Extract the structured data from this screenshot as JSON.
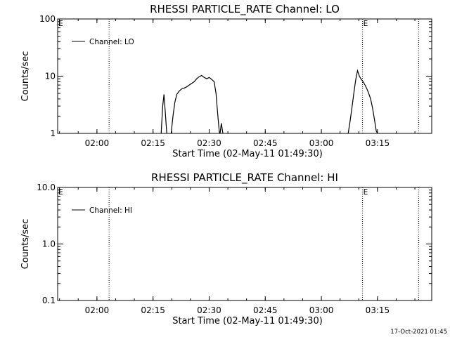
{
  "chart_data": [
    {
      "type": "line",
      "title": "RHESSI PARTICLE_RATE Channel: LO",
      "xlabel": "Start Time (02-May-11 01:49:30)",
      "ylabel": "Counts/sec",
      "x_unit": "time (HH:MM)",
      "xlim": [
        "01:49:30",
        "03:29:30"
      ],
      "x_ticks": [
        "02:00",
        "02:15",
        "02:30",
        "02:45",
        "03:00",
        "03:15"
      ],
      "y_scale": "log",
      "ylim": [
        1,
        100
      ],
      "y_ticks": [
        "1",
        "10",
        "100"
      ],
      "legend": {
        "entry": "Channel: LO",
        "placement": "top-left"
      },
      "markers": [
        {
          "time": "02:03:15",
          "label": ""
        },
        {
          "time": "03:11:00",
          "label": "E"
        },
        {
          "time": "03:26:00",
          "label": ""
        }
      ],
      "corner_label": "E",
      "series": [
        {
          "name": "Channel: LO",
          "segments": [
            [
              [
                "02:17:10",
                1
              ],
              [
                "02:17:35",
                3
              ],
              [
                "02:17:55",
                4.8
              ],
              [
                "02:18:15",
                2.5
              ],
              [
                "02:18:40",
                1
              ]
            ],
            [
              [
                "02:19:50",
                1
              ],
              [
                "02:20:20",
                2
              ],
              [
                "02:20:50",
                3.5
              ],
              [
                "02:21:20",
                4.8
              ],
              [
                "02:22:00",
                5.5
              ],
              [
                "02:22:40",
                6.0
              ],
              [
                "02:23:20",
                6.2
              ],
              [
                "02:24:00",
                6.5
              ],
              [
                "02:24:40",
                7.0
              ],
              [
                "02:25:20",
                7.5
              ],
              [
                "02:26:00",
                8.0
              ],
              [
                "02:26:40",
                9.0
              ],
              [
                "02:27:20",
                9.8
              ],
              [
                "02:28:00",
                10.3
              ],
              [
                "02:28:40",
                9.5
              ],
              [
                "02:29:20",
                9.0
              ],
              [
                "02:30:00",
                9.5
              ],
              [
                "02:30:40",
                8.8
              ],
              [
                "02:31:20",
                8.0
              ],
              [
                "02:31:50",
                5.0
              ],
              [
                "02:32:20",
                2.0
              ],
              [
                "02:32:45",
                1
              ]
            ],
            [
              [
                "02:32:55",
                1
              ],
              [
                "02:33:15",
                1.5
              ],
              [
                "02:33:40",
                1
              ]
            ],
            [
              [
                "03:07:10",
                1
              ],
              [
                "03:07:40",
                1.6
              ],
              [
                "03:08:10",
                2.8
              ],
              [
                "03:08:40",
                5.0
              ],
              [
                "03:09:10",
                8.5
              ],
              [
                "03:09:40",
                12.5
              ],
              [
                "03:10:10",
                10.0
              ],
              [
                "03:10:40",
                8.8
              ],
              [
                "03:11:10",
                8.0
              ],
              [
                "03:11:40",
                7.0
              ],
              [
                "03:12:10",
                6.0
              ],
              [
                "03:12:40",
                5.0
              ],
              [
                "03:13:10",
                4.0
              ],
              [
                "03:13:40",
                2.8
              ],
              [
                "03:14:10",
                1.8
              ],
              [
                "03:14:40",
                1.1
              ],
              [
                "03:15:00",
                1
              ]
            ]
          ]
        }
      ]
    },
    {
      "type": "line",
      "title": "RHESSI PARTICLE_RATE Channel: HI",
      "xlabel": "Start Time (02-May-11 01:49:30)",
      "ylabel": "Counts/sec",
      "x_unit": "time (HH:MM)",
      "xlim": [
        "01:49:30",
        "03:29:30"
      ],
      "x_ticks": [
        "02:00",
        "02:15",
        "02:30",
        "02:45",
        "03:00",
        "03:15"
      ],
      "y_scale": "log",
      "ylim": [
        0.1,
        10
      ],
      "y_ticks": [
        "0.1",
        "1.0",
        "10.0"
      ],
      "legend": {
        "entry": "Channel: HI",
        "placement": "top-left"
      },
      "markers": [
        {
          "time": "02:03:15",
          "label": ""
        },
        {
          "time": "03:11:00",
          "label": "E"
        },
        {
          "time": "03:26:00",
          "label": ""
        }
      ],
      "corner_label": "E",
      "series": [
        {
          "name": "Channel: HI",
          "segments": []
        }
      ]
    }
  ],
  "footer": {
    "timestamp": "17-Oct-2021 01:45"
  }
}
